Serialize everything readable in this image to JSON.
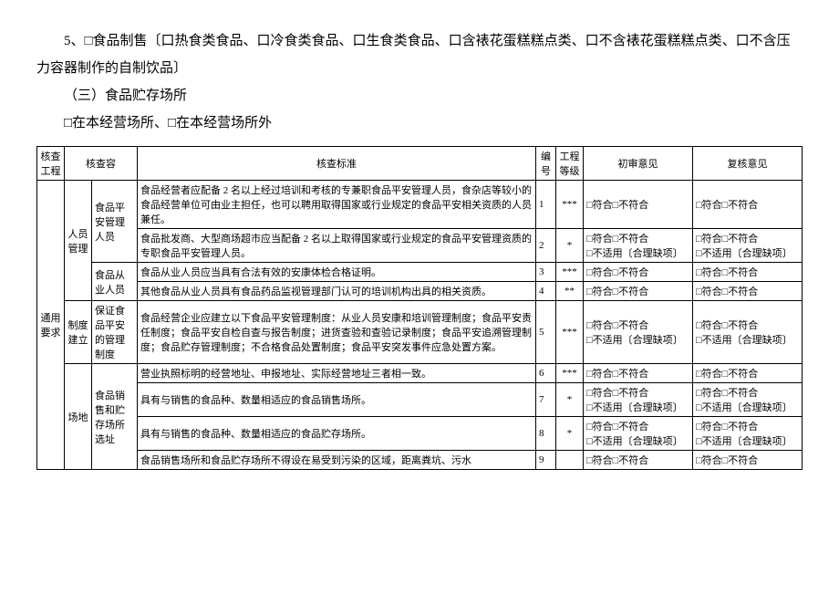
{
  "intro": {
    "p1": "5、□食品制售〔口热食类食品、口冷食类食品、口生食类食品、口含裱花蛋糕糕点类、口不含裱花蛋糕糕点类、口不含压力容器制作的自制饮品〕",
    "p2": "（三）食品贮存场所",
    "p3": "□在本经营场所、□在本经营场所外"
  },
  "headers": {
    "h1": "核查工程",
    "h2": "核查容",
    "h3": "核查标准",
    "h4": "编号",
    "h5": "工程等级",
    "h6": "初审意见",
    "h7": "复核意见"
  },
  "groups": {
    "g1": "通用要求",
    "g1a": "人员管理",
    "g1b": "制度建立",
    "g1c": "场地"
  },
  "items": {
    "i1": "食品平安管理人员",
    "i2": "食品从业人员",
    "i3": "保证食品平安的管理制度",
    "i4": "食品销售和贮存场所选址"
  },
  "std": {
    "s1": "食品经营者应配备 2 名以上经过培训和考核的专兼职食品平安管理人员，食杂店等较小的食品经营单位可由业主担任，也可以聘用取得国家或行业规定的食品平安相关资质的人员兼任。",
    "s2": "食品批发商、大型商场超市应当配备 2 名以上取得国家或行业规定的食品平安管理资质的专职食品平安管理人员。",
    "s3": "食品从业人员应当具有合法有效的安康体检合格证明。",
    "s4": "其他食品从业人员具有食品药品监视管理部门认可的培训机构出具的相关资质。",
    "s5": "食品经营企业应建立以下食品平安管理制度：从业人员安康和培训管理制度；食品平安责任制度；食品平安自检自查与报告制度；进货查验和查验记录制度；食品平安追溯管理制度；食品贮存管理制度；不合格食品处置制度；食品平安突发事件应急处置方案。",
    "s6": "营业执照标明的经营地址、申报地址、实际经营地址三者相一致。",
    "s7": "具有与销售的食品种、数量相适应的食品销售场所。",
    "s8": "具有与销售的食品种、数量相适应的食品贮存场所。",
    "s9": "食品销售场所和食品贮存场所不得设在易受到污染的区域，距离粪坑、污水"
  },
  "num": {
    "n1": "1",
    "n2": "2",
    "n3": "3",
    "n4": "4",
    "n5": "5",
    "n6": "6",
    "n7": "7",
    "n8": "8",
    "n9": "9"
  },
  "grade": {
    "r1": "***",
    "r2": "*",
    "r3": "***",
    "r4": "**",
    "r5": "***",
    "r6": "***",
    "r7": "*",
    "r8": "*",
    "r9": ""
  },
  "opinion": {
    "o1": "□符合□不符合",
    "o2": "□符合□不符合\n□不适用〔合理缺项〕",
    "o3": "□符合□不符合",
    "o4": "□符合□不符合",
    "o5": "□符合□不符合\n□不适用〔合理缺项〕",
    "o6": "□符合□不符合",
    "o7": "□符合□不符合\n□不适用〔合理缺项〕",
    "o8": "□符合□不符合\n□不适用〔合理缺项〕",
    "o9": "□符合□不符合"
  },
  "review": {
    "r1": "□符合□不符合",
    "r2": "□符合□不符合\n□不适用〔合理缺项〕",
    "r3": "□符合□不符合",
    "r4": "□符合□不符合",
    "r5": "□符合□不符合\n□不适用〔合理缺项〕",
    "r6": "□符合□不符合",
    "r7": "□符合□不符合\n□不适用〔合理缺项〕",
    "r8": "□符合□不符合\n□不适用〔合理缺项〕",
    "r9": "□符合□不符合"
  }
}
